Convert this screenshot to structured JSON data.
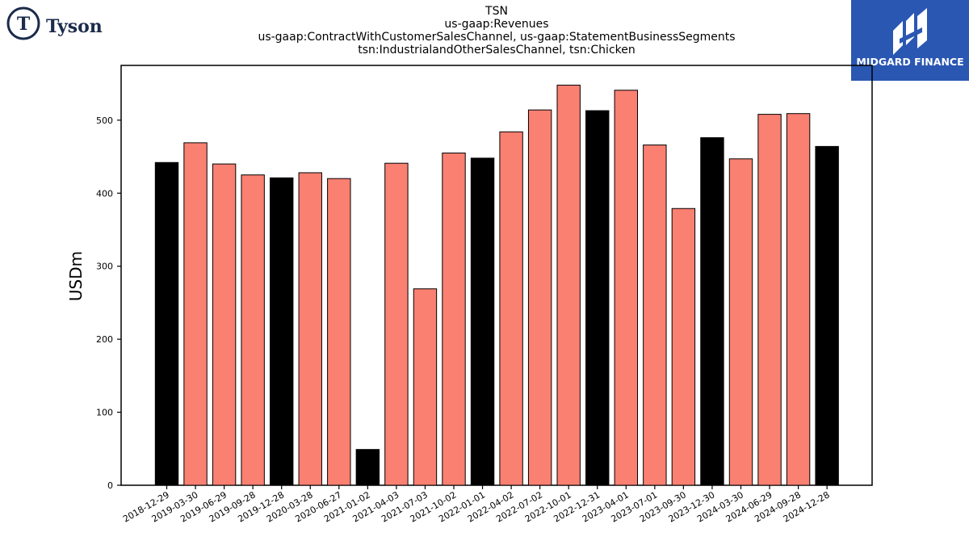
{
  "header": {
    "title_lines": [
      "TSN",
      "us-gaap:Revenues",
      "us-gaap:ContractWithCustomerSalesChannel, us-gaap:StatementBusinessSegments",
      "tsn:IndustrialandOtherSalesChannel, tsn:Chicken"
    ]
  },
  "logos": {
    "left": {
      "brand": "Tyson",
      "mark": "T",
      "color": "#1b2b4b"
    },
    "right": {
      "brand": "MIDGARD FINANCE",
      "background": "#2a57b2"
    }
  },
  "chart_data": {
    "type": "bar",
    "ylabel": "USDm",
    "ylim": [
      0,
      575
    ],
    "yticks": [
      0,
      100,
      200,
      300,
      400,
      500
    ],
    "grid": false,
    "colors": {
      "quarter": "#fa8072",
      "annual": "#000000"
    },
    "categories": [
      "2018-12-29",
      "2019-03-30",
      "2019-06-29",
      "2019-09-28",
      "2019-12-28",
      "2020-03-28",
      "2020-06-27",
      "2021-01-02",
      "2021-04-03",
      "2021-07-03",
      "2021-10-02",
      "2022-01-01",
      "2022-04-02",
      "2022-07-02",
      "2022-10-01",
      "2022-12-31",
      "2023-04-01",
      "2023-07-01",
      "2023-09-30",
      "2023-12-30",
      "2024-03-30",
      "2024-06-29",
      "2024-09-28",
      "2024-12-28"
    ],
    "values": [
      442,
      469,
      440,
      425,
      421,
      428,
      420,
      49,
      441,
      269,
      455,
      448,
      484,
      514,
      548,
      513,
      541,
      466,
      379,
      476,
      447,
      508,
      509,
      464
    ],
    "highlight": [
      true,
      false,
      false,
      false,
      true,
      false,
      false,
      true,
      false,
      false,
      false,
      true,
      false,
      false,
      false,
      true,
      false,
      false,
      false,
      true,
      false,
      false,
      false,
      true
    ]
  }
}
